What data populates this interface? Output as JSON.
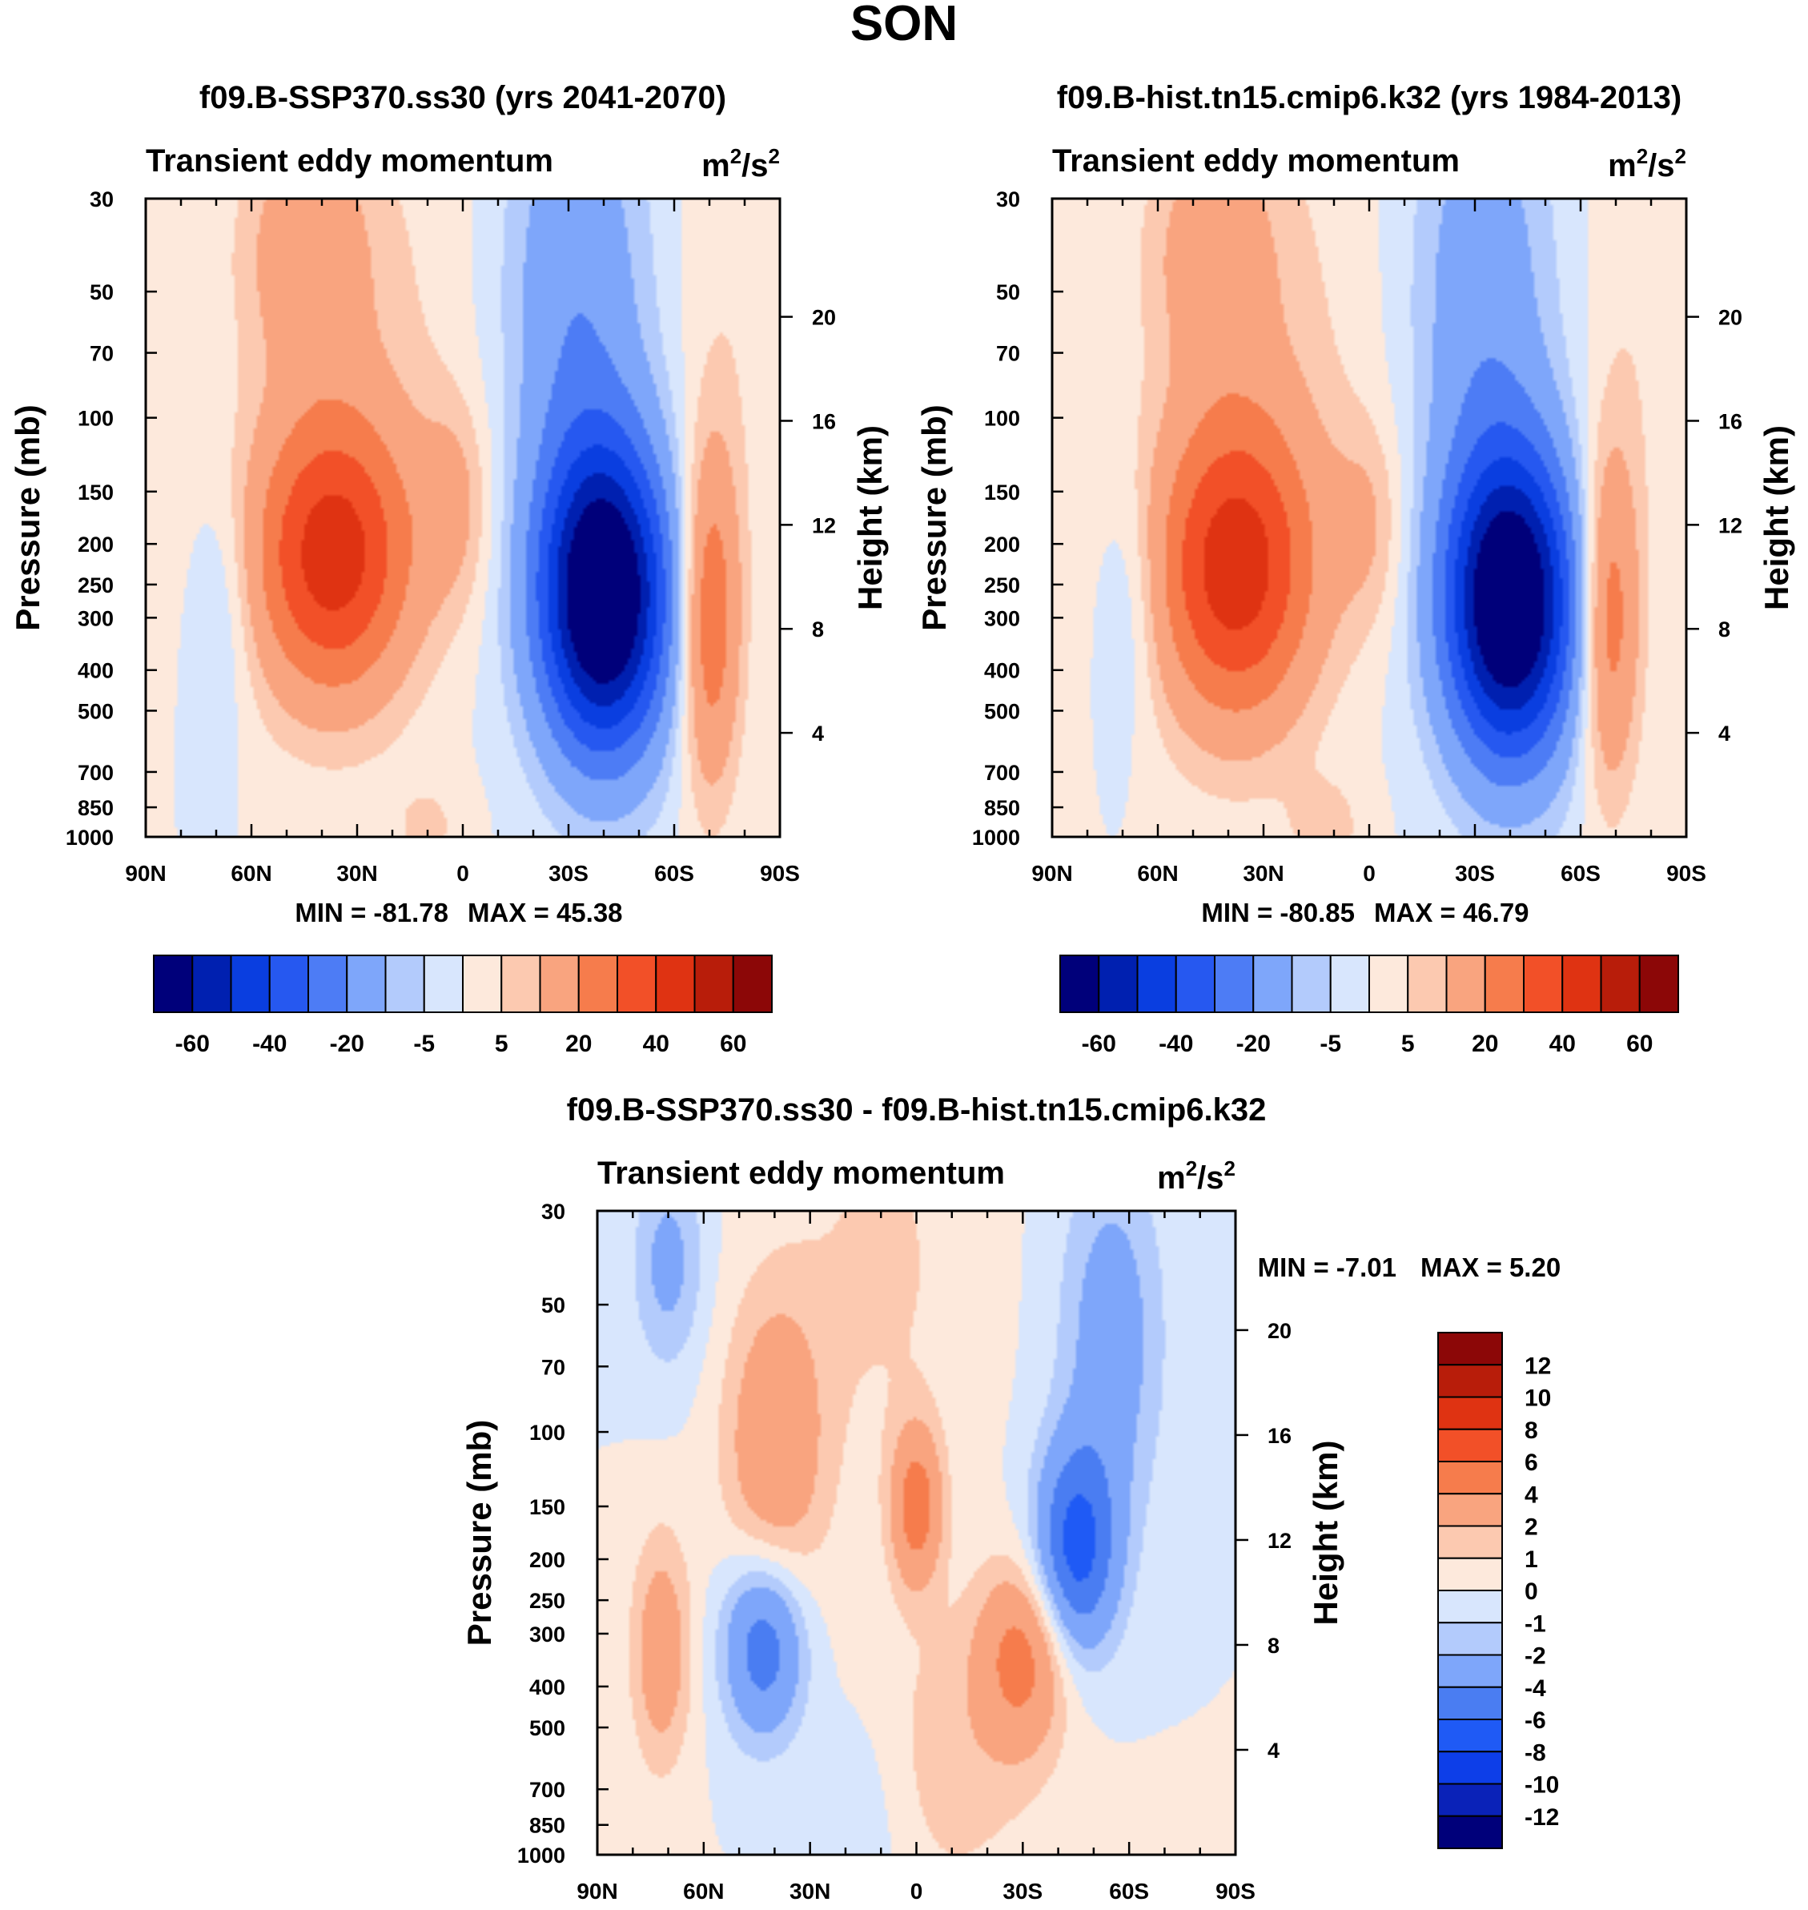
{
  "figure_title": "SON",
  "colors": {
    "main_scale": [
      "#00007a",
      "#0020b0",
      "#0a3ee0",
      "#2658f0",
      "#4d7cf5",
      "#7ea6fa",
      "#b3cbfc",
      "#d8e6fd",
      "#fde9dc",
      "#fcc9b0",
      "#f9a47f",
      "#f67c4c",
      "#f25028",
      "#df3312",
      "#b81d0a",
      "#8c0707"
    ],
    "diff_scale": [
      "#00007a",
      "#0a22b8",
      "#0d3ee8",
      "#1f5af5",
      "#4a7df2",
      "#7ea6fa",
      "#b3cbfc",
      "#d8e6fd",
      "#fde9dc",
      "#fcc9b0",
      "#f9a47f",
      "#f67c4c",
      "#f25028",
      "#df3312",
      "#b81d0a",
      "#8c0707"
    ]
  },
  "chart_data": [
    {
      "type": "contour",
      "panel": "left",
      "title": "f09.B-SSP370.ss30 (yrs 2041-2070)",
      "subtitle_left": "Transient eddy momentum",
      "units_base": "m",
      "units_exp1": "2",
      "units_mid": "/s",
      "units_exp2": "2",
      "ylabel": "Pressure (mb)",
      "ylabel_right": "Height (km)",
      "x_ticks": [
        "90N",
        "60N",
        "30N",
        "0",
        "30S",
        "60S",
        "90S"
      ],
      "x_range": [
        90,
        -90
      ],
      "y_ticks": [
        30,
        50,
        70,
        100,
        150,
        200,
        250,
        300,
        400,
        500,
        700,
        850,
        1000
      ],
      "y_range": [
        30,
        1000
      ],
      "height_ticks": [
        20,
        16,
        12,
        8,
        4
      ],
      "min_label": "MIN = -81.78",
      "max_label": "MAX =  45.38",
      "min": -81.78,
      "max": 45.38,
      "levels": [
        -70,
        -60,
        -50,
        -40,
        -30,
        -20,
        -10,
        -5,
        0,
        5,
        10,
        20,
        30,
        40,
        50,
        60,
        70
      ],
      "colorbar_labels": [
        "-60",
        "-40",
        "-20",
        "-5",
        "5",
        "20",
        "40",
        "60"
      ],
      "features": [
        {
          "lat": 37,
          "p": 215,
          "amp": 44,
          "wlat": 16,
          "wlz": 0.55
        },
        {
          "lat": 45,
          "p": 40,
          "amp": 14,
          "wlat": 12,
          "wlz": 0.45
        },
        {
          "lat": 30,
          "p": 60,
          "amp": 6,
          "wlat": 22,
          "wlz": 1.0
        },
        {
          "lat": 2,
          "p": 160,
          "amp": 10,
          "wlat": 7,
          "wlz": 0.4
        },
        {
          "lat": -40,
          "p": 270,
          "amp": -80,
          "wlat": 13,
          "wlz": 0.6
        },
        {
          "lat": -32,
          "p": 50,
          "amp": -18,
          "wlat": 14,
          "wlz": 0.9
        },
        {
          "lat": -70,
          "p": 300,
          "amp": 30,
          "wlat": 6,
          "wlz": 0.65
        },
        {
          "lat": -75,
          "p": 60,
          "amp": 4,
          "wlat": 10,
          "wlz": 1.0
        },
        {
          "lat": 68,
          "p": 280,
          "amp": -8,
          "wlat": 6,
          "wlz": 0.5
        },
        {
          "lat": 10,
          "p": 950,
          "amp": 6,
          "wlat": 8,
          "wlz": 0.2
        }
      ]
    },
    {
      "type": "contour",
      "panel": "right",
      "title": "f09.B-hist.tn15.cmip6.k32 (yrs 1984-2013)",
      "subtitle_left": "Transient eddy momentum",
      "units_base": "m",
      "units_exp1": "2",
      "units_mid": "/s",
      "units_exp2": "2",
      "ylabel": "Pressure (mb)",
      "ylabel_right": "Height (km)",
      "x_ticks": [
        "90N",
        "60N",
        "30N",
        "0",
        "30S",
        "60S",
        "90S"
      ],
      "x_range": [
        90,
        -90
      ],
      "y_ticks": [
        30,
        50,
        70,
        100,
        150,
        200,
        250,
        300,
        400,
        500,
        700,
        850,
        1000
      ],
      "y_range": [
        30,
        1000
      ],
      "height_ticks": [
        20,
        16,
        12,
        8,
        4
      ],
      "min_label": "MIN = -80.85",
      "max_label": "MAX =  46.79",
      "min": -80.85,
      "max": 46.79,
      "levels": [
        -70,
        -60,
        -50,
        -40,
        -30,
        -20,
        -10,
        -5,
        0,
        5,
        10,
        20,
        30,
        40,
        50,
        60,
        70
      ],
      "colorbar_labels": [
        "-60",
        "-40",
        "-20",
        "-5",
        "5",
        "20",
        "40",
        "60"
      ],
      "features": [
        {
          "lat": 38,
          "p": 230,
          "amp": 45,
          "wlat": 16,
          "wlz": 0.6
        },
        {
          "lat": 45,
          "p": 40,
          "amp": 13,
          "wlat": 12,
          "wlz": 0.45
        },
        {
          "lat": 30,
          "p": 60,
          "amp": 6,
          "wlat": 22,
          "wlz": 1.0
        },
        {
          "lat": 0,
          "p": 180,
          "amp": 9,
          "wlat": 7,
          "wlz": 0.4
        },
        {
          "lat": -40,
          "p": 280,
          "amp": -79,
          "wlat": 13,
          "wlz": 0.6
        },
        {
          "lat": -32,
          "p": 50,
          "amp": -16,
          "wlat": 14,
          "wlz": 0.9
        },
        {
          "lat": -68,
          "p": 300,
          "amp": 28,
          "wlat": 6,
          "wlz": 0.65
        },
        {
          "lat": -75,
          "p": 60,
          "amp": 4,
          "wlat": 10,
          "wlz": 1.0
        },
        {
          "lat": 68,
          "p": 280,
          "amp": -8,
          "wlat": 6,
          "wlz": 0.5
        },
        {
          "lat": 12,
          "p": 950,
          "amp": 7,
          "wlat": 8,
          "wlz": 0.2
        }
      ]
    },
    {
      "type": "contour",
      "panel": "bottom",
      "title": "f09.B-SSP370.ss30 - f09.B-hist.tn15.cmip6.k32",
      "subtitle_left": "Transient eddy momentum",
      "units_base": "m",
      "units_exp1": "2",
      "units_mid": "/s",
      "units_exp2": "2",
      "ylabel": "Pressure (mb)",
      "ylabel_right": "Height (km)",
      "x_ticks": [
        "90N",
        "60N",
        "30N",
        "0",
        "30S",
        "60S",
        "90S"
      ],
      "x_range": [
        90,
        -90
      ],
      "y_ticks": [
        30,
        50,
        70,
        100,
        150,
        200,
        250,
        300,
        400,
        500,
        700,
        850,
        1000
      ],
      "y_range": [
        30,
        1000
      ],
      "height_ticks": [
        20,
        16,
        12,
        8,
        4
      ],
      "min_label": "MIN =  -7.01",
      "max_label": "MAX =    5.20",
      "min": -7.01,
      "max": 5.2,
      "levels": [
        -14,
        -12,
        -10,
        -8,
        -6,
        -4,
        -2,
        -1,
        0,
        1,
        2,
        4,
        6,
        8,
        10,
        12,
        14
      ],
      "colorbar_labels": [
        "12",
        "10",
        "8",
        "6",
        "4",
        "2",
        "1",
        "0",
        "-1",
        "-2",
        "-4",
        "-6",
        "-8",
        "-10",
        "-12"
      ],
      "features": [
        {
          "lat": 40,
          "p": 110,
          "amp": 3.6,
          "wlat": 10,
          "wlz": 0.6
        },
        {
          "lat": 43,
          "p": 320,
          "amp": -5.5,
          "wlat": 8,
          "wlz": 0.35
        },
        {
          "lat": 72,
          "p": 330,
          "amp": 3.2,
          "wlat": 6,
          "wlz": 0.45
        },
        {
          "lat": 0,
          "p": 150,
          "amp": 5.0,
          "wlat": 5,
          "wlz": 0.3
        },
        {
          "lat": -30,
          "p": 340,
          "amp": 4.5,
          "wlat": 9,
          "wlz": 0.35
        },
        {
          "lat": -45,
          "p": 190,
          "amp": -6.8,
          "wlat": 8,
          "wlz": 0.4
        },
        {
          "lat": -55,
          "p": 60,
          "amp": -3.0,
          "wlat": 10,
          "wlz": 0.7
        },
        {
          "lat": 70,
          "p": 40,
          "amp": -2.5,
          "wlat": 7,
          "wlz": 0.4
        },
        {
          "lat": -8,
          "p": 600,
          "amp": 1.5,
          "wlat": 20,
          "wlz": 0.6
        },
        {
          "lat": 15,
          "p": 800,
          "amp": -1.2,
          "wlat": 10,
          "wlz": 0.5
        },
        {
          "lat": 10,
          "p": 40,
          "amp": 1.2,
          "wlat": 18,
          "wlz": 0.8
        }
      ]
    }
  ]
}
